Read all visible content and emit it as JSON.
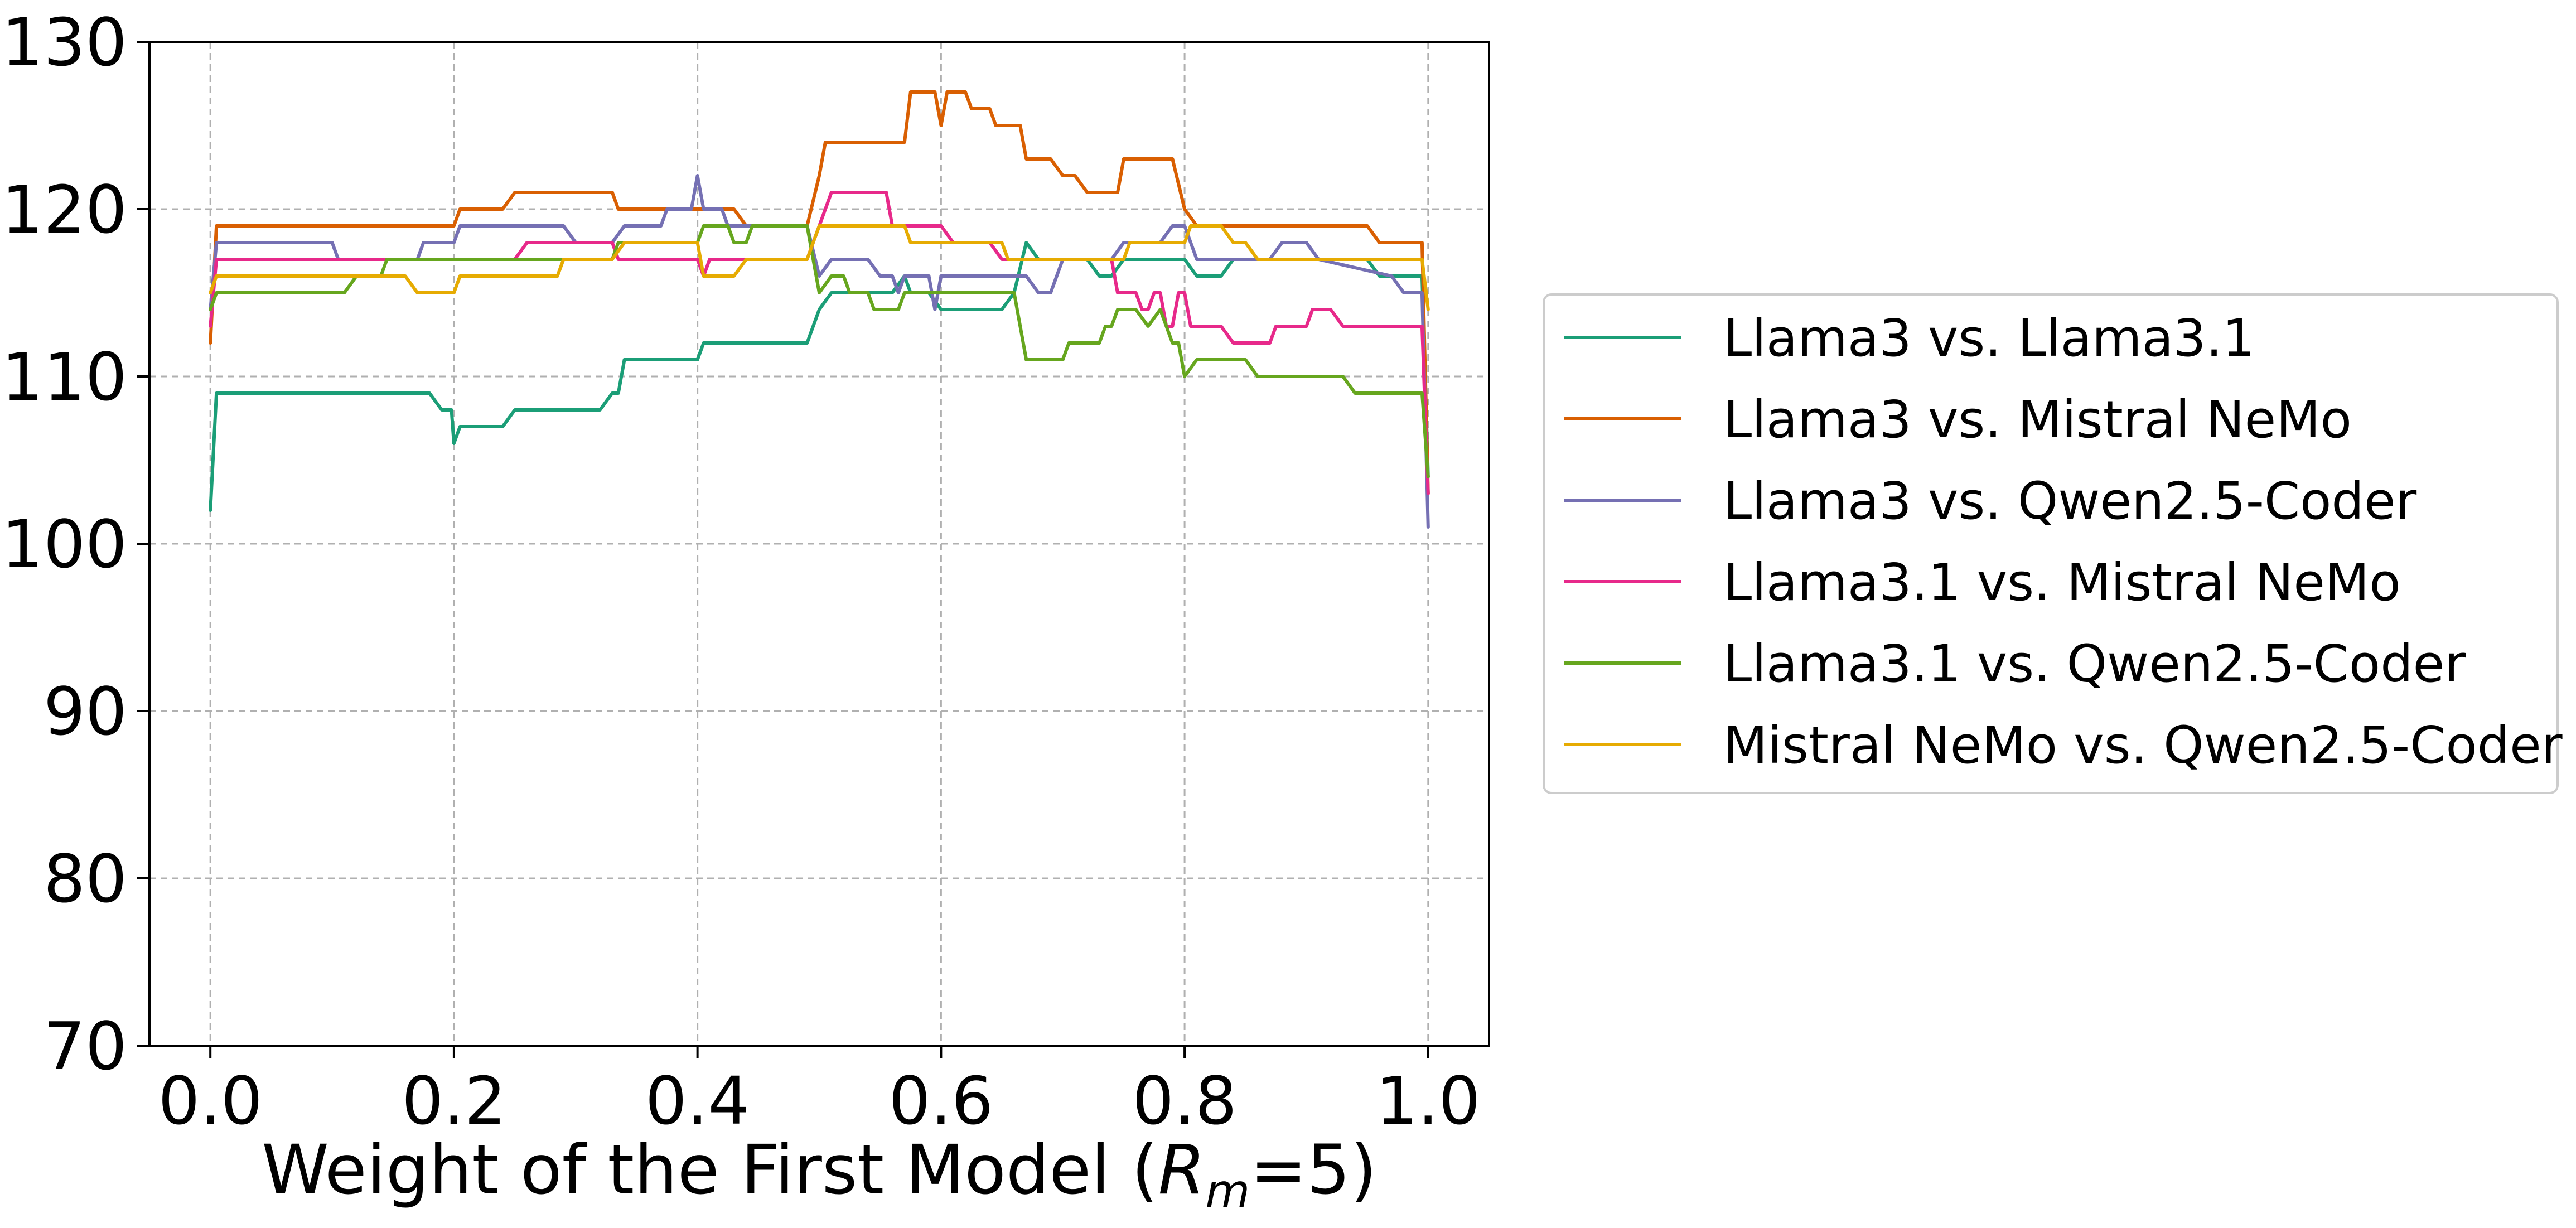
{
  "chart_data": {
    "type": "line",
    "title": "",
    "xlabel": "Weight of the First Model",
    "xlabel_suffix": {
      "open": " (",
      "symbol": "R",
      "subscript": "m",
      "value": "=5)"
    },
    "ylabel": "",
    "xlim": [
      -0.05,
      1.05
    ],
    "ylim": [
      70,
      130
    ],
    "x_ticks": [
      "0.0",
      "0.2",
      "0.4",
      "0.6",
      "0.8",
      "1.0"
    ],
    "y_ticks": [
      "70",
      "80",
      "90",
      "100",
      "110",
      "120",
      "130"
    ],
    "grid": true,
    "legend_position": "right-outside",
    "series": [
      {
        "name": "Llama3 vs. Llama3.1",
        "color": "#1b9e77",
        "points": [
          [
            0.0,
            102
          ],
          [
            0.005,
            109
          ],
          [
            0.1,
            109
          ],
          [
            0.18,
            109
          ],
          [
            0.19,
            108
          ],
          [
            0.198,
            108
          ],
          [
            0.2,
            106
          ],
          [
            0.205,
            107
          ],
          [
            0.24,
            107
          ],
          [
            0.25,
            108
          ],
          [
            0.32,
            108
          ],
          [
            0.33,
            109
          ],
          [
            0.335,
            109
          ],
          [
            0.34,
            111
          ],
          [
            0.4,
            111
          ],
          [
            0.405,
            112
          ],
          [
            0.47,
            112
          ],
          [
            0.49,
            112
          ],
          [
            0.5,
            114
          ],
          [
            0.51,
            115
          ],
          [
            0.56,
            115
          ],
          [
            0.57,
            116
          ],
          [
            0.575,
            115
          ],
          [
            0.59,
            115
          ],
          [
            0.6,
            114
          ],
          [
            0.65,
            114
          ],
          [
            0.66,
            115
          ],
          [
            0.67,
            118
          ],
          [
            0.68,
            117
          ],
          [
            0.7,
            117
          ],
          [
            0.72,
            117
          ],
          [
            0.73,
            116
          ],
          [
            0.74,
            116
          ],
          [
            0.75,
            117
          ],
          [
            0.8,
            117
          ],
          [
            0.81,
            116
          ],
          [
            0.83,
            116
          ],
          [
            0.84,
            117
          ],
          [
            0.95,
            117
          ],
          [
            0.96,
            116
          ],
          [
            0.995,
            116
          ],
          [
            1.0,
            104
          ]
        ]
      },
      {
        "name": "Llama3 vs. Mistral NeMo",
        "color": "#d95f02",
        "points": [
          [
            0.0,
            112
          ],
          [
            0.005,
            119
          ],
          [
            0.2,
            119
          ],
          [
            0.205,
            120
          ],
          [
            0.24,
            120
          ],
          [
            0.25,
            121
          ],
          [
            0.33,
            121
          ],
          [
            0.335,
            120
          ],
          [
            0.43,
            120
          ],
          [
            0.44,
            119
          ],
          [
            0.49,
            119
          ],
          [
            0.5,
            122
          ],
          [
            0.505,
            124
          ],
          [
            0.57,
            124
          ],
          [
            0.575,
            127
          ],
          [
            0.595,
            127
          ],
          [
            0.6,
            125
          ],
          [
            0.605,
            127
          ],
          [
            0.62,
            127
          ],
          [
            0.625,
            126
          ],
          [
            0.64,
            126
          ],
          [
            0.645,
            125
          ],
          [
            0.665,
            125
          ],
          [
            0.67,
            123
          ],
          [
            0.69,
            123
          ],
          [
            0.7,
            122
          ],
          [
            0.71,
            122
          ],
          [
            0.72,
            121
          ],
          [
            0.745,
            121
          ],
          [
            0.75,
            123
          ],
          [
            0.79,
            123
          ],
          [
            0.8,
            120
          ],
          [
            0.81,
            119
          ],
          [
            0.95,
            119
          ],
          [
            0.96,
            118
          ],
          [
            0.995,
            118
          ],
          [
            1.0,
            103
          ]
        ]
      },
      {
        "name": "Llama3 vs. Qwen2.5-Coder",
        "color": "#7570b3",
        "points": [
          [
            0.0,
            114
          ],
          [
            0.005,
            118
          ],
          [
            0.1,
            118
          ],
          [
            0.105,
            117
          ],
          [
            0.17,
            117
          ],
          [
            0.175,
            118
          ],
          [
            0.2,
            118
          ],
          [
            0.205,
            119
          ],
          [
            0.29,
            119
          ],
          [
            0.3,
            118
          ],
          [
            0.33,
            118
          ],
          [
            0.34,
            119
          ],
          [
            0.37,
            119
          ],
          [
            0.375,
            120
          ],
          [
            0.395,
            120
          ],
          [
            0.4,
            122
          ],
          [
            0.405,
            120
          ],
          [
            0.42,
            120
          ],
          [
            0.425,
            119
          ],
          [
            0.49,
            119
          ],
          [
            0.5,
            116
          ],
          [
            0.51,
            117
          ],
          [
            0.54,
            117
          ],
          [
            0.55,
            116
          ],
          [
            0.56,
            116
          ],
          [
            0.565,
            115
          ],
          [
            0.57,
            116
          ],
          [
            0.59,
            116
          ],
          [
            0.595,
            114
          ],
          [
            0.6,
            116
          ],
          [
            0.67,
            116
          ],
          [
            0.68,
            115
          ],
          [
            0.69,
            115
          ],
          [
            0.7,
            117
          ],
          [
            0.74,
            117
          ],
          [
            0.75,
            118
          ],
          [
            0.78,
            118
          ],
          [
            0.79,
            119
          ],
          [
            0.8,
            119
          ],
          [
            0.81,
            117
          ],
          [
            0.87,
            117
          ],
          [
            0.88,
            118
          ],
          [
            0.9,
            118
          ],
          [
            0.91,
            117
          ],
          [
            0.97,
            116
          ],
          [
            0.98,
            115
          ],
          [
            0.995,
            115
          ],
          [
            1.0,
            101
          ]
        ]
      },
      {
        "name": "Llama3.1 vs. Mistral NeMo",
        "color": "#e7298a",
        "points": [
          [
            0.0,
            113
          ],
          [
            0.005,
            117
          ],
          [
            0.25,
            117
          ],
          [
            0.26,
            118
          ],
          [
            0.33,
            118
          ],
          [
            0.335,
            117
          ],
          [
            0.4,
            117
          ],
          [
            0.405,
            116
          ],
          [
            0.41,
            117
          ],
          [
            0.49,
            117
          ],
          [
            0.5,
            119
          ],
          [
            0.51,
            121
          ],
          [
            0.555,
            121
          ],
          [
            0.56,
            119
          ],
          [
            0.6,
            119
          ],
          [
            0.61,
            118
          ],
          [
            0.64,
            118
          ],
          [
            0.65,
            117
          ],
          [
            0.74,
            117
          ],
          [
            0.745,
            115
          ],
          [
            0.76,
            115
          ],
          [
            0.765,
            114
          ],
          [
            0.77,
            114
          ],
          [
            0.775,
            115
          ],
          [
            0.78,
            115
          ],
          [
            0.785,
            113
          ],
          [
            0.79,
            113
          ],
          [
            0.795,
            115
          ],
          [
            0.8,
            115
          ],
          [
            0.805,
            113
          ],
          [
            0.83,
            113
          ],
          [
            0.84,
            112
          ],
          [
            0.87,
            112
          ],
          [
            0.875,
            113
          ],
          [
            0.9,
            113
          ],
          [
            0.905,
            114
          ],
          [
            0.92,
            114
          ],
          [
            0.93,
            113
          ],
          [
            0.995,
            113
          ],
          [
            1.0,
            103
          ]
        ]
      },
      {
        "name": "Llama3.1 vs. Qwen2.5-Coder",
        "color": "#66a61e",
        "points": [
          [
            0.0,
            114
          ],
          [
            0.005,
            115
          ],
          [
            0.11,
            115
          ],
          [
            0.12,
            116
          ],
          [
            0.14,
            116
          ],
          [
            0.145,
            117
          ],
          [
            0.33,
            117
          ],
          [
            0.335,
            118
          ],
          [
            0.4,
            118
          ],
          [
            0.405,
            119
          ],
          [
            0.425,
            119
          ],
          [
            0.43,
            118
          ],
          [
            0.44,
            118
          ],
          [
            0.445,
            119
          ],
          [
            0.49,
            119
          ],
          [
            0.5,
            115
          ],
          [
            0.51,
            116
          ],
          [
            0.52,
            116
          ],
          [
            0.525,
            115
          ],
          [
            0.54,
            115
          ],
          [
            0.545,
            114
          ],
          [
            0.565,
            114
          ],
          [
            0.57,
            115
          ],
          [
            0.66,
            115
          ],
          [
            0.67,
            111
          ],
          [
            0.7,
            111
          ],
          [
            0.705,
            112
          ],
          [
            0.73,
            112
          ],
          [
            0.735,
            113
          ],
          [
            0.74,
            113
          ],
          [
            0.745,
            114
          ],
          [
            0.76,
            114
          ],
          [
            0.77,
            113
          ],
          [
            0.78,
            114
          ],
          [
            0.79,
            112
          ],
          [
            0.795,
            112
          ],
          [
            0.8,
            110
          ],
          [
            0.81,
            111
          ],
          [
            0.85,
            111
          ],
          [
            0.86,
            110
          ],
          [
            0.93,
            110
          ],
          [
            0.94,
            109
          ],
          [
            0.995,
            109
          ],
          [
            1.0,
            104
          ]
        ]
      },
      {
        "name": "Mistral NeMo vs. Qwen2.5-Coder",
        "color": "#e6ab02",
        "points": [
          [
            0.0,
            115
          ],
          [
            0.005,
            116
          ],
          [
            0.16,
            116
          ],
          [
            0.17,
            115
          ],
          [
            0.2,
            115
          ],
          [
            0.205,
            116
          ],
          [
            0.285,
            116
          ],
          [
            0.29,
            117
          ],
          [
            0.33,
            117
          ],
          [
            0.34,
            118
          ],
          [
            0.4,
            118
          ],
          [
            0.405,
            116
          ],
          [
            0.43,
            116
          ],
          [
            0.44,
            117
          ],
          [
            0.49,
            117
          ],
          [
            0.5,
            119
          ],
          [
            0.57,
            119
          ],
          [
            0.575,
            118
          ],
          [
            0.65,
            118
          ],
          [
            0.655,
            117
          ],
          [
            0.75,
            117
          ],
          [
            0.755,
            118
          ],
          [
            0.8,
            118
          ],
          [
            0.805,
            119
          ],
          [
            0.83,
            119
          ],
          [
            0.84,
            118
          ],
          [
            0.85,
            118
          ],
          [
            0.86,
            117
          ],
          [
            0.995,
            117
          ],
          [
            1.0,
            114
          ]
        ]
      }
    ]
  }
}
